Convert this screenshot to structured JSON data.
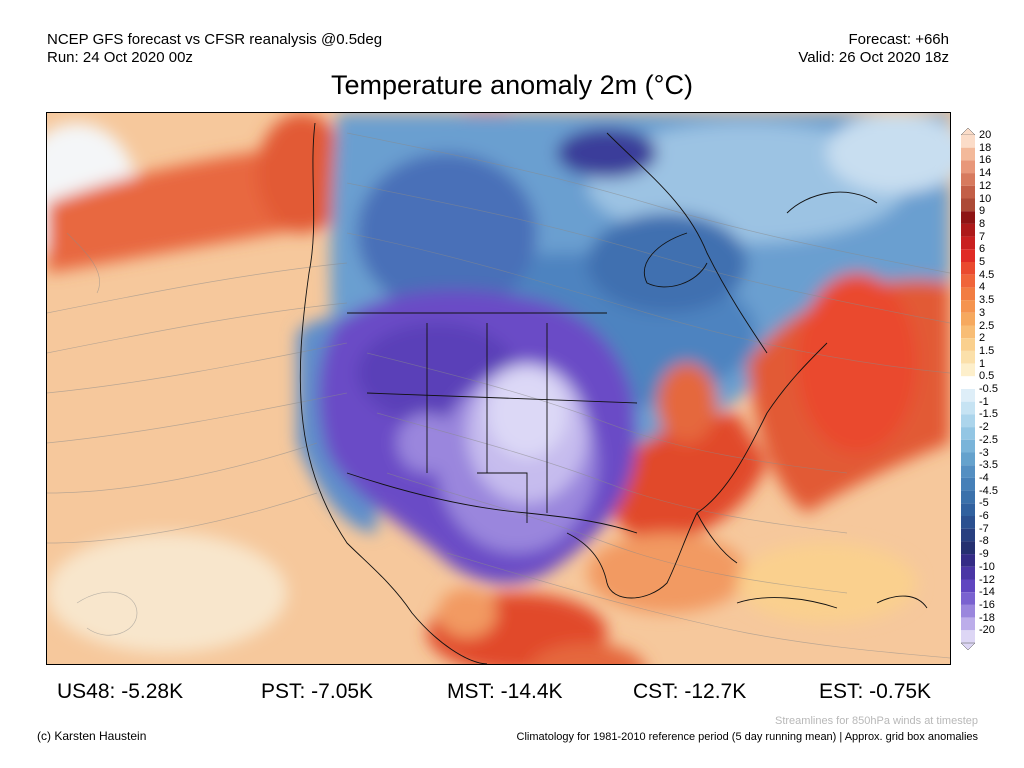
{
  "header": {
    "left_line1": "NCEP GFS forecast vs CFSR reanalysis @0.5deg",
    "left_line2": "Run: 24 Oct 2020 00z",
    "right_line1": "Forecast: +66h",
    "right_line2": "Valid: 26 Oct 2020 18z"
  },
  "title": "Temperature anomaly 2m (°C)",
  "legend": {
    "labels": [
      "20",
      "18",
      "16",
      "14",
      "12",
      "10",
      "9",
      "8",
      "7",
      "6",
      "5",
      "4.5",
      "4",
      "3.5",
      "3",
      "2.5",
      "2",
      "1.5",
      "1",
      "0.5",
      "-0.5",
      "-1",
      "-1.5",
      "-2",
      "-2.5",
      "-3",
      "-3.5",
      "-4",
      "-4.5",
      "-5",
      "-6",
      "-7",
      "-8",
      "-9",
      "-10",
      "-12",
      "-14",
      "-16",
      "-18",
      "-20"
    ],
    "colors": [
      "#fbdcc8",
      "#f3b99a",
      "#e8977a",
      "#d77a5e",
      "#c35f47",
      "#ac4a36",
      "#8e1414",
      "#ad1a1a",
      "#c92020",
      "#e02b25",
      "#ea4a2f",
      "#f0653a",
      "#f27d42",
      "#f5944f",
      "#f6a95f",
      "#f8bd75",
      "#fad08e",
      "#fbe0aa",
      "#fdefcb",
      "#ffffff",
      "#deeef8",
      "#c6e3f3",
      "#acd5ec",
      "#93c6e4",
      "#7ab4d9",
      "#65a2cd",
      "#548fc2",
      "#4680b8",
      "#3b71ab",
      "#31619f",
      "#2b5090",
      "#283f80",
      "#253070",
      "#342c86",
      "#4a36a5",
      "#6046c0",
      "#7a62d0",
      "#9a86dd",
      "#bcadea",
      "#ddd6f5"
    ]
  },
  "map": {
    "region": "North America",
    "colors": {
      "ocean_warm": "#f6c89c",
      "pacific_hot": "#e8683f",
      "atlantic_hot": "#e25a34",
      "canada_cold": "#6a9fd0",
      "core_cold": "#6a4bc6",
      "core_extreme": "#dcd8f6"
    }
  },
  "stats": [
    {
      "label": "US48: -5.28K"
    },
    {
      "label": "PST: -7.05K"
    },
    {
      "label": "MST: -14.4K"
    },
    {
      "label": "CST: -12.7K"
    },
    {
      "label": "EST: -0.75K"
    }
  ],
  "footer": {
    "credit": "(c) Karsten Haustein",
    "note": "Streamlines for 850hPa winds at timestep",
    "climatology": "Climatology for 1981-2010 reference period (5 day running mean) | Approx. grid box anomalies"
  }
}
